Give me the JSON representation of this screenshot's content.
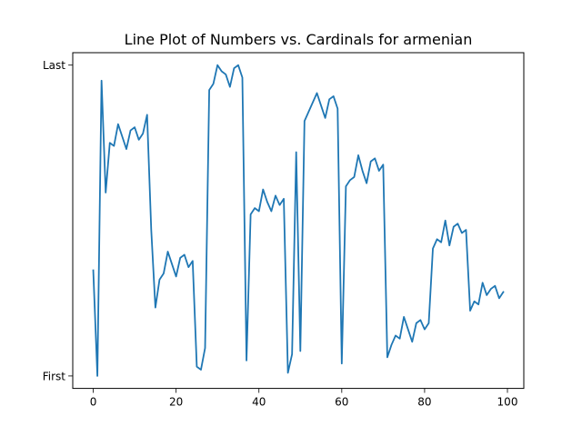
{
  "chart_data": {
    "type": "line",
    "title": "Line Plot of Numbers vs. Cardinals for armenian",
    "xlabel": "",
    "ylabel": "",
    "xlim": [
      -4.95,
      103.95
    ],
    "ylim": [
      -0.04,
      1.04
    ],
    "xticks": [
      0,
      20,
      40,
      60,
      80,
      100
    ],
    "xtick_labels": [
      "0",
      "20",
      "40",
      "60",
      "80",
      "100"
    ],
    "yticks": [
      0,
      1
    ],
    "ytick_labels": [
      "First",
      "Last"
    ],
    "grid": false,
    "series": [
      {
        "color": "#1f77b4",
        "x": [
          0,
          1,
          2,
          3,
          4,
          5,
          6,
          7,
          8,
          9,
          10,
          11,
          12,
          13,
          14,
          15,
          16,
          17,
          18,
          19,
          20,
          21,
          22,
          23,
          24,
          25,
          26,
          27,
          28,
          29,
          30,
          31,
          32,
          33,
          34,
          35,
          36,
          37,
          38,
          39,
          40,
          41,
          42,
          43,
          44,
          45,
          46,
          47,
          48,
          49,
          50,
          51,
          52,
          53,
          54,
          55,
          56,
          57,
          58,
          59,
          60,
          61,
          62,
          63,
          64,
          65,
          66,
          67,
          68,
          69,
          70,
          71,
          72,
          73,
          74,
          75,
          76,
          77,
          78,
          79,
          80,
          81,
          82,
          83,
          84,
          85,
          86,
          87,
          88,
          89,
          90,
          91,
          92,
          93,
          94,
          95,
          96,
          97,
          98,
          99
        ],
        "values": [
          0.34,
          0.0,
          0.95,
          0.59,
          0.75,
          0.74,
          0.81,
          0.77,
          0.73,
          0.79,
          0.8,
          0.76,
          0.78,
          0.84,
          0.47,
          0.22,
          0.31,
          0.33,
          0.4,
          0.36,
          0.32,
          0.38,
          0.39,
          0.35,
          0.37,
          0.03,
          0.02,
          0.09,
          0.92,
          0.94,
          1.0,
          0.98,
          0.97,
          0.93,
          0.99,
          1.0,
          0.96,
          0.05,
          0.52,
          0.54,
          0.53,
          0.6,
          0.56,
          0.53,
          0.58,
          0.55,
          0.57,
          0.01,
          0.07,
          0.72,
          0.08,
          0.82,
          0.85,
          0.88,
          0.91,
          0.87,
          0.83,
          0.89,
          0.9,
          0.86,
          0.04,
          0.61,
          0.63,
          0.64,
          0.71,
          0.66,
          0.62,
          0.69,
          0.7,
          0.66,
          0.68,
          0.06,
          0.1,
          0.13,
          0.12,
          0.19,
          0.15,
          0.11,
          0.17,
          0.18,
          0.15,
          0.17,
          0.41,
          0.44,
          0.43,
          0.5,
          0.42,
          0.48,
          0.49,
          0.46,
          0.47,
          0.21,
          0.24,
          0.23,
          0.3,
          0.26,
          0.28,
          0.29,
          0.25,
          0.27
        ]
      }
    ]
  }
}
